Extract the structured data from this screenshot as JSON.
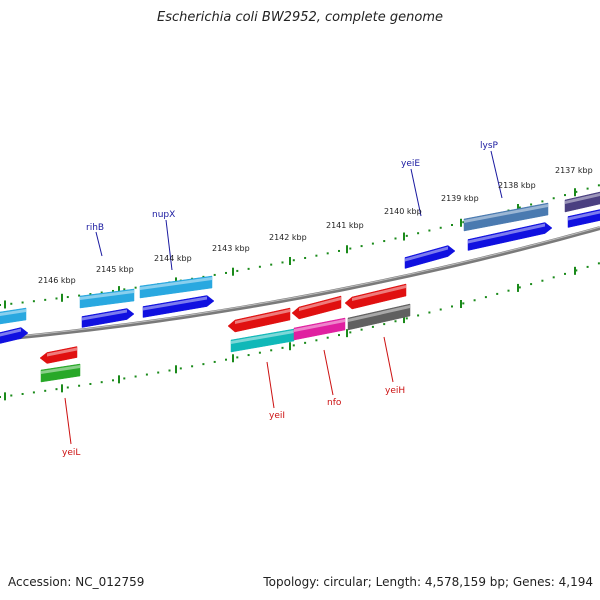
{
  "title": "Escherichia coli BW2952, complete genome",
  "footer": {
    "accession": "Accession: NC_012759",
    "summary": "Topology: circular; Length: 4,578,159 bp; Genes: 4,194"
  },
  "colors": {
    "backbone": "#7a7a7a",
    "ticks": "#1a8a1a",
    "label_top": "#1a1aa0",
    "label_bottom": "#cc1111"
  },
  "scale_labels": [
    "2146 kbp",
    "2145 kbp",
    "2144 kbp",
    "2143 kbp",
    "2142 kbp",
    "2141 kbp",
    "2140 kbp",
    "2139 kbp",
    "2138 kbp",
    "2137 kbp"
  ],
  "labels_top": [
    "rihB",
    "nupX",
    "yeiE",
    "lysP"
  ],
  "labels_bottom": [
    "yeiL",
    "yeiI",
    "nfo",
    "yeiH"
  ],
  "genes": [
    {
      "id": "g-top-edge-1",
      "color": "#29a8e0"
    },
    {
      "id": "g-rihB",
      "color": "#29a8e0"
    },
    {
      "id": "g-nupX",
      "color": "#29a8e0"
    },
    {
      "id": "g-lysP",
      "color": "#4a7ab0"
    },
    {
      "id": "g-edge-purple",
      "color": "#4a3f80"
    },
    {
      "id": "g-blue-1",
      "color": "#1010e0"
    },
    {
      "id": "g-blue-2",
      "color": "#1010e0"
    },
    {
      "id": "g-blue-3",
      "color": "#1010e0"
    },
    {
      "id": "g-yeiE",
      "color": "#1010e0"
    },
    {
      "id": "g-blue-5",
      "color": "#1010e0"
    },
    {
      "id": "g-blue-6",
      "color": "#1010e0"
    },
    {
      "id": "g-yeiL-red",
      "color": "#e01010"
    },
    {
      "id": "g-yeiL-green",
      "color": "#28a828"
    },
    {
      "id": "g-yeiI",
      "color": "#e01010"
    },
    {
      "id": "g-red-2",
      "color": "#e01010"
    },
    {
      "id": "g-red-3",
      "color": "#e01010"
    },
    {
      "id": "g-cyan",
      "color": "#10b8b8"
    },
    {
      "id": "g-nfo",
      "color": "#e020a0"
    },
    {
      "id": "g-yeiH",
      "color": "#606060"
    }
  ]
}
